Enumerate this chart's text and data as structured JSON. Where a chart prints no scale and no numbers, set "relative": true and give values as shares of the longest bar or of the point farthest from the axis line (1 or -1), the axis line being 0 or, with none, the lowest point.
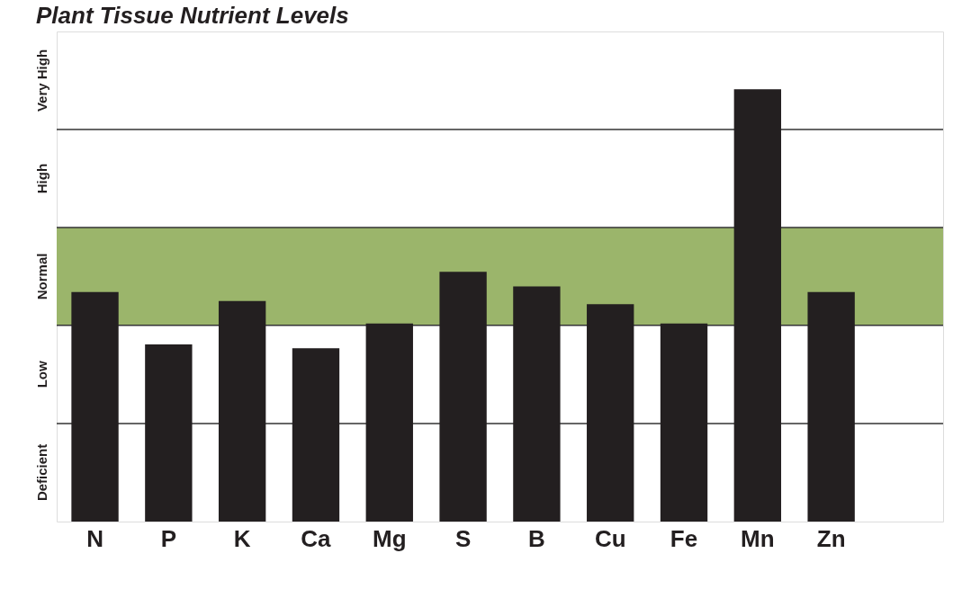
{
  "chart_data": {
    "type": "bar",
    "title": "Plant Tissue Nutrient Levels",
    "relative": true,
    "categories": [
      "N",
      "P",
      "K",
      "Ca",
      "Mg",
      "S",
      "B",
      "Cu",
      "Fe",
      "Mn",
      "Zn",
      null
    ],
    "values": [
      0.531,
      0.41,
      0.51,
      0.401,
      0.458,
      0.578,
      0.544,
      0.503,
      0.458,
      1,
      0.531,
      null
    ],
    "color": "#231f20",
    "bands": [
      {
        "axis": "y",
        "from": 0.454,
        "to": 0.68,
        "label": "Normal",
        "color": "#9bb56b"
      }
    ],
    "annotations": [
      "Deficient",
      "Low",
      "High",
      "Very High"
    ],
    "ref_lines": [
      {
        "axis": "y",
        "value": 0.227,
        "color": "#333333"
      },
      {
        "axis": "y",
        "value": 0.454,
        "color": "#333333"
      },
      {
        "axis": "y",
        "value": 0.68,
        "color": "#333333"
      },
      {
        "axis": "y",
        "value": 0.907,
        "color": "#333333"
      }
    ]
  }
}
